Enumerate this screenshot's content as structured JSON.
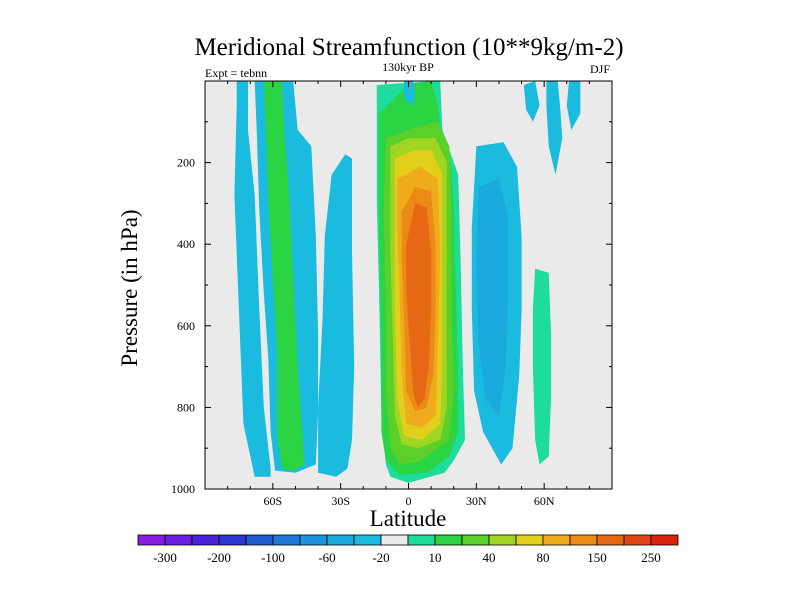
{
  "chart_data": {
    "type": "heatmap",
    "title": "Meridional Streamfunction (10**9kg/m-2)",
    "subtitle_left": "Expt = tebnn",
    "subtitle_center": "130kyr BP",
    "subtitle_right": "DJF",
    "xlabel": "Latitude",
    "ylabel": "Pressure (in hPa)",
    "xlim": [
      -90,
      90
    ],
    "ylim": [
      1000,
      0
    ],
    "x_ticks": [
      {
        "value": -60,
        "label": "60S"
      },
      {
        "value": -30,
        "label": "30S"
      },
      {
        "value": 0,
        "label": "0"
      },
      {
        "value": 30,
        "label": "30N"
      },
      {
        "value": 60,
        "label": "60N"
      }
    ],
    "y_ticks": [
      {
        "value": 200,
        "label": "200"
      },
      {
        "value": 400,
        "label": "400"
      },
      {
        "value": 600,
        "label": "600"
      },
      {
        "value": 800,
        "label": "800"
      },
      {
        "value": 1000,
        "label": "1000"
      }
    ],
    "colorbar": {
      "colors": [
        "#8a1ee0",
        "#6d20df",
        "#4b24d8",
        "#2f36cf",
        "#1f5cd2",
        "#1f78d8",
        "#1e93dc",
        "#1aa9dc",
        "#1bbbdf",
        "#eaeaea",
        "#1edc9c",
        "#2ad442",
        "#5bd02a",
        "#a0d521",
        "#e2cf1c",
        "#f0ab1c",
        "#ec8a18",
        "#e66714",
        "#df4512",
        "#d92410"
      ],
      "labels": [
        {
          "after_bin": 1,
          "label": "-300"
        },
        {
          "after_bin": 3,
          "label": "-200"
        },
        {
          "after_bin": 5,
          "label": "-100"
        },
        {
          "after_bin": 7,
          "label": "-60"
        },
        {
          "after_bin": 9,
          "label": "-20"
        },
        {
          "after_bin": 11,
          "label": "10"
        },
        {
          "after_bin": 13,
          "label": "40"
        },
        {
          "after_bin": 15,
          "label": "80"
        },
        {
          "after_bin": 17,
          "label": "150"
        },
        {
          "after_bin": 19,
          "label": "250"
        }
      ]
    },
    "cells": [
      {
        "name": "sh-polar-cell",
        "color_index": 8,
        "outline": [
          [
            -76,
            0
          ],
          [
            -71,
            0
          ],
          [
            -71,
            120
          ],
          [
            -68,
            280
          ],
          [
            -66,
            560
          ],
          [
            -64,
            800
          ],
          [
            -61,
            950
          ],
          [
            -61,
            970
          ],
          [
            -68,
            970
          ],
          [
            -73,
            840
          ],
          [
            -75,
            560
          ],
          [
            -77,
            280
          ],
          [
            -76,
            60
          ]
        ]
      },
      {
        "name": "sh-ferrel-outer",
        "color_index": 8,
        "outline": [
          [
            -68,
            0
          ],
          [
            -51,
            0
          ],
          [
            -49,
            120
          ],
          [
            -43,
            160
          ],
          [
            -41,
            380
          ],
          [
            -40,
            620
          ],
          [
            -40,
            810
          ],
          [
            -41,
            940
          ],
          [
            -50,
            960
          ],
          [
            -59,
            955
          ],
          [
            -61,
            860
          ],
          [
            -62,
            680
          ],
          [
            -64,
            520
          ],
          [
            -66,
            320
          ],
          [
            -67,
            140
          ]
        ]
      },
      {
        "name": "sh-ferrel-core",
        "color_index": 11,
        "outline": [
          [
            -64,
            0
          ],
          [
            -56,
            0
          ],
          [
            -55,
            120
          ],
          [
            -53,
            260
          ],
          [
            -51,
            480
          ],
          [
            -49,
            700
          ],
          [
            -47,
            860
          ],
          [
            -46,
            940
          ],
          [
            -51,
            955
          ],
          [
            -56,
            950
          ],
          [
            -58,
            870
          ],
          [
            -58,
            680
          ],
          [
            -60,
            480
          ],
          [
            -62,
            300
          ],
          [
            -63,
            140
          ]
        ]
      },
      {
        "name": "sh-hadley-neg",
        "color_index": 8,
        "outline": [
          [
            -28,
            180
          ],
          [
            -25,
            190
          ],
          [
            -25,
            420
          ],
          [
            -24,
            700
          ],
          [
            -25,
            880
          ],
          [
            -27,
            950
          ],
          [
            -32,
            970
          ],
          [
            -40,
            960
          ],
          [
            -40,
            800
          ],
          [
            -38,
            580
          ],
          [
            -37,
            380
          ],
          [
            -34,
            230
          ]
        ]
      },
      {
        "name": "hadley-outer",
        "color_index": 10,
        "outline": [
          [
            -14,
            10
          ],
          [
            11,
            0
          ],
          [
            14,
            0
          ],
          [
            15,
            120
          ],
          [
            22,
            230
          ],
          [
            23,
            430
          ],
          [
            24,
            700
          ],
          [
            25,
            880
          ],
          [
            20,
            930
          ],
          [
            16,
            960
          ],
          [
            0,
            985
          ],
          [
            -8,
            970
          ],
          [
            -10,
            940
          ],
          [
            -12,
            820
          ],
          [
            -13,
            520
          ],
          [
            -14,
            300
          ],
          [
            -14,
            100
          ]
        ]
      },
      {
        "name": "hadley-l11",
        "color_index": 11,
        "outline": [
          [
            -13,
            80
          ],
          [
            0,
            10
          ],
          [
            10,
            0
          ],
          [
            13,
            60
          ],
          [
            14,
            120
          ],
          [
            18,
            160
          ],
          [
            20,
            300
          ],
          [
            21,
            520
          ],
          [
            22,
            740
          ],
          [
            22,
            860
          ],
          [
            18,
            920
          ],
          [
            8,
            960
          ],
          [
            -4,
            965
          ],
          [
            -10,
            930
          ],
          [
            -12,
            860
          ],
          [
            -12,
            620
          ],
          [
            -13,
            380
          ],
          [
            -13,
            160
          ]
        ]
      },
      {
        "name": "hadley-l12",
        "color_index": 12,
        "outline": [
          [
            -10,
            140
          ],
          [
            5,
            110
          ],
          [
            13,
            100
          ],
          [
            18,
            160
          ],
          [
            19,
            330
          ],
          [
            19,
            560
          ],
          [
            20,
            760
          ],
          [
            18,
            880
          ],
          [
            6,
            930
          ],
          [
            -4,
            940
          ],
          [
            -8,
            900
          ],
          [
            -10,
            760
          ],
          [
            -10,
            540
          ],
          [
            -11,
            320
          ]
        ]
      },
      {
        "name": "hadley-l13",
        "color_index": 13,
        "outline": [
          [
            -8,
            160
          ],
          [
            0,
            140
          ],
          [
            12,
            140
          ],
          [
            17,
            200
          ],
          [
            17,
            400
          ],
          [
            17,
            620
          ],
          [
            17,
            800
          ],
          [
            14,
            880
          ],
          [
            4,
            900
          ],
          [
            -3,
            890
          ],
          [
            -6,
            820
          ],
          [
            -7,
            620
          ],
          [
            -8,
            420
          ],
          [
            -8,
            240
          ]
        ]
      },
      {
        "name": "hadley-l14",
        "color_index": 14,
        "outline": [
          [
            -6,
            190
          ],
          [
            2,
            170
          ],
          [
            10,
            170
          ],
          [
            15,
            230
          ],
          [
            15,
            440
          ],
          [
            15,
            680
          ],
          [
            14,
            840
          ],
          [
            6,
            880
          ],
          [
            -2,
            870
          ],
          [
            -5,
            780
          ],
          [
            -6,
            560
          ],
          [
            -6,
            330
          ]
        ]
      },
      {
        "name": "hadley-l15",
        "color_index": 15,
        "outline": [
          [
            -5,
            240
          ],
          [
            5,
            210
          ],
          [
            13,
            240
          ],
          [
            14,
            420
          ],
          [
            13,
            660
          ],
          [
            12,
            820
          ],
          [
            6,
            850
          ],
          [
            -1,
            840
          ],
          [
            -3,
            720
          ],
          [
            -4,
            520
          ],
          [
            -5,
            360
          ]
        ]
      },
      {
        "name": "hadley-l16",
        "color_index": 16,
        "outline": [
          [
            -3,
            320
          ],
          [
            3,
            260
          ],
          [
            10,
            270
          ],
          [
            12,
            400
          ],
          [
            12,
            560
          ],
          [
            11,
            720
          ],
          [
            8,
            800
          ],
          [
            3,
            810
          ],
          [
            -1,
            760
          ],
          [
            -2,
            580
          ],
          [
            -3,
            440
          ]
        ]
      },
      {
        "name": "hadley-core",
        "color_index": 17,
        "outline": [
          [
            -1,
            400
          ],
          [
            3,
            300
          ],
          [
            8,
            310
          ],
          [
            10,
            420
          ],
          [
            10,
            560
          ],
          [
            9,
            700
          ],
          [
            7,
            780
          ],
          [
            4,
            800
          ],
          [
            2,
            760
          ],
          [
            0,
            600
          ],
          [
            -1,
            500
          ]
        ]
      },
      {
        "name": "nh-ferrel-neg",
        "color_index": 8,
        "outline": [
          [
            30,
            160
          ],
          [
            42,
            150
          ],
          [
            48,
            210
          ],
          [
            50,
            380
          ],
          [
            50,
            560
          ],
          [
            49,
            720
          ],
          [
            46,
            900
          ],
          [
            41,
            940
          ],
          [
            33,
            860
          ],
          [
            29,
            760
          ],
          [
            28,
            560
          ],
          [
            28,
            360
          ]
        ]
      },
      {
        "name": "nh-ferrel-inner",
        "color_index": 7,
        "outline": [
          [
            31,
            260
          ],
          [
            40,
            240
          ],
          [
            44,
            330
          ],
          [
            44,
            520
          ],
          [
            43,
            700
          ],
          [
            40,
            820
          ],
          [
            34,
            780
          ],
          [
            31,
            640
          ],
          [
            30,
            460
          ]
        ]
      },
      {
        "name": "nh-mid-patch",
        "color_index": 8,
        "outline": [
          [
            51,
            10
          ],
          [
            56,
            0
          ],
          [
            58,
            60
          ],
          [
            55,
            100
          ],
          [
            52,
            70
          ]
        ]
      },
      {
        "name": "nh-polar-pos",
        "color_index": 10,
        "outline": [
          [
            56,
            460
          ],
          [
            62,
            470
          ],
          [
            63,
            620
          ],
          [
            63,
            780
          ],
          [
            62,
            920
          ],
          [
            58,
            940
          ],
          [
            56,
            880
          ],
          [
            55,
            700
          ],
          [
            55,
            560
          ]
        ]
      },
      {
        "name": "nh-polar-neg-1",
        "color_index": 8,
        "outline": [
          [
            61,
            0
          ],
          [
            66,
            0
          ],
          [
            67,
            60
          ],
          [
            68,
            140
          ],
          [
            65,
            230
          ],
          [
            62,
            160
          ],
          [
            61,
            60
          ]
        ]
      },
      {
        "name": "nh-polar-neg-2",
        "color_index": 8,
        "outline": [
          [
            71,
            0
          ],
          [
            76,
            0
          ],
          [
            76,
            80
          ],
          [
            72,
            120
          ],
          [
            70,
            60
          ]
        ]
      },
      {
        "name": "tropical-upper-patch",
        "color_index": 8,
        "outline": [
          [
            -2,
            0
          ],
          [
            2,
            0
          ],
          [
            3,
            40
          ],
          [
            1,
            60
          ],
          [
            -2,
            40
          ]
        ]
      }
    ]
  }
}
